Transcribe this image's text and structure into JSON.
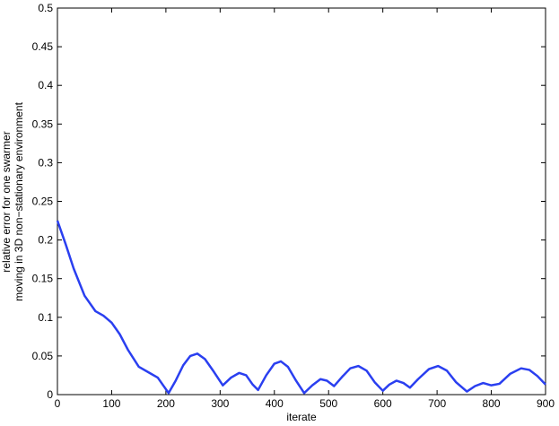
{
  "chart_data": {
    "type": "line",
    "xlabel": "iterate",
    "ylabel": [
      "relative error for one swarmer",
      "moving in 3D non−stationary environment"
    ],
    "x": [
      0,
      15,
      30,
      50,
      70,
      85,
      100,
      115,
      130,
      150,
      170,
      185,
      195,
      205,
      218,
      232,
      245,
      258,
      272,
      288,
      305,
      320,
      335,
      348,
      360,
      370,
      385,
      400,
      412,
      425,
      440,
      455,
      470,
      485,
      497,
      510,
      525,
      540,
      555,
      570,
      585,
      600,
      612,
      625,
      638,
      650,
      665,
      685,
      702,
      718,
      735,
      755,
      770,
      785,
      800,
      815,
      835,
      855,
      870,
      885,
      900
    ],
    "series": [
      {
        "name": "relative error",
        "color": "#2a3ff0",
        "values": [
          0.225,
          0.195,
          0.163,
          0.128,
          0.108,
          0.102,
          0.093,
          0.078,
          0.058,
          0.036,
          0.028,
          0.022,
          0.012,
          0.002,
          0.018,
          0.038,
          0.05,
          0.053,
          0.046,
          0.03,
          0.012,
          0.022,
          0.028,
          0.025,
          0.013,
          0.006,
          0.025,
          0.04,
          0.043,
          0.036,
          0.018,
          0.002,
          0.012,
          0.02,
          0.018,
          0.011,
          0.023,
          0.034,
          0.037,
          0.031,
          0.016,
          0.005,
          0.013,
          0.018,
          0.015,
          0.009,
          0.02,
          0.033,
          0.037,
          0.031,
          0.016,
          0.004,
          0.011,
          0.015,
          0.012,
          0.014,
          0.027,
          0.034,
          0.032,
          0.024,
          0.013
        ]
      }
    ],
    "xlim": [
      0,
      900
    ],
    "xticks": [
      0,
      100,
      200,
      300,
      400,
      500,
      600,
      700,
      800,
      900
    ],
    "ylim": [
      0,
      0.5
    ],
    "yticks": [
      0,
      0.05,
      0.1,
      0.15,
      0.2,
      0.25,
      0.3,
      0.35,
      0.4,
      0.45,
      0.5
    ],
    "grid": false
  }
}
